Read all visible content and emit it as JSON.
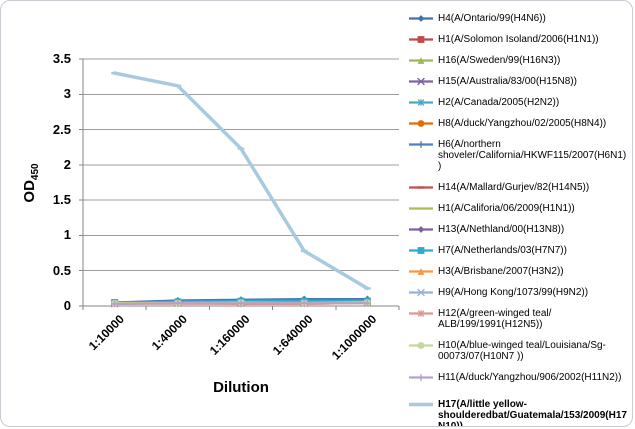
{
  "chart_data": {
    "type": "line",
    "title": "",
    "xlabel": "Dilution",
    "ylabel": "OD450",
    "ylabel_main": "OD",
    "ylabel_sub": "450",
    "categories": [
      "1:10000",
      "1:40000",
      "1:160000",
      "1:640000",
      "1:1000000"
    ],
    "y_ticks": [
      "3.5",
      "3",
      "2.5",
      "2",
      "1.5",
      "1",
      "0.5",
      "0"
    ],
    "ylim": [
      0,
      3.5
    ],
    "grid": true,
    "legend_position": "right",
    "series": [
      {
        "name": "H4(A/Ontario/99(H4N6))",
        "color": "#4472A4",
        "marker": "diamond",
        "values": [
          0.05,
          0.08,
          0.09,
          0.1,
          0.1
        ]
      },
      {
        "name": "H1(A/Solomon Isoland/2006(H1N1))",
        "color": "#BE4B48",
        "marker": "square",
        "values": [
          0.04,
          0.05,
          0.05,
          0.05,
          0.05
        ]
      },
      {
        "name": "H16(A/Sweden/99(H16N3))",
        "color": "#98B954",
        "marker": "triangle",
        "values": [
          0.05,
          0.05,
          0.06,
          0.06,
          0.06
        ]
      },
      {
        "name": "H15(A/Australia/83/00(H15N8))",
        "color": "#7E63A1",
        "marker": "x",
        "values": [
          0.04,
          0.05,
          0.05,
          0.05,
          0.05
        ]
      },
      {
        "name": "H2(A/Canada/2005(H2N2))",
        "color": "#46AAC5",
        "marker": "asterisk",
        "values": [
          0.05,
          0.06,
          0.06,
          0.06,
          0.06
        ]
      },
      {
        "name": "H8(A/duck/Yangzhou/02/2005(H8N4))",
        "color": "#E36C0A",
        "marker": "circle",
        "values": [
          0.05,
          0.06,
          0.07,
          0.07,
          0.07
        ]
      },
      {
        "name": "H6(A/northern shoveler/California/HKWF115/2007(H6N1))",
        "color": "#4F81BD",
        "marker": "plus",
        "values": [
          0.05,
          0.07,
          0.08,
          0.09,
          0.09
        ]
      },
      {
        "name": "H14(A/Mallard/Gurjev/82(H14N5))",
        "color": "#C0504D",
        "marker": "dash",
        "values": [
          0.03,
          0.04,
          0.03,
          0.03,
          0.04
        ]
      },
      {
        "name": "H1(A/Califoria/06/2009(H1N1))",
        "color": "#A8BE51",
        "marker": "none",
        "values": [
          0.04,
          0.04,
          0.04,
          0.04,
          0.05
        ]
      },
      {
        "name": "H13(A/Nethland/00(H13N8))",
        "color": "#7D60A0",
        "marker": "diamond",
        "values": [
          0.05,
          0.06,
          0.06,
          0.06,
          0.06
        ]
      },
      {
        "name": "H7(A/Netherlands/03(H7N7))",
        "color": "#2FAACB",
        "marker": "square",
        "values": [
          0.05,
          0.06,
          0.07,
          0.07,
          0.07
        ]
      },
      {
        "name": "H3(A/Brisbane/2007(H3N2))",
        "color": "#F79646",
        "marker": "triangle",
        "values": [
          0.04,
          0.05,
          0.05,
          0.05,
          0.06
        ]
      },
      {
        "name": "H9(A/Hong Kong/1073/99(H9N2))",
        "color": "#95B3D7",
        "marker": "x",
        "values": [
          0.03,
          0.04,
          0.04,
          0.04,
          0.04
        ]
      },
      {
        "name": "H12(A/green-winged teal/ ALB/199/1991(H12N5))",
        "color": "#D99694",
        "marker": "asterisk",
        "values": [
          0.03,
          0.03,
          0.03,
          0.03,
          0.04
        ]
      },
      {
        "name": "H10(A/blue-winged teal/Louisiana/Sg-00073/07(H10N7 ))",
        "color": "#C3D69B",
        "marker": "circle",
        "values": [
          0.04,
          0.04,
          0.05,
          0.04,
          0.05
        ]
      },
      {
        "name": "H11(A/duck/Yangzhou/906/2002(H11N2))",
        "color": "#B2A2C7",
        "marker": "plus",
        "values": [
          0.03,
          0.04,
          0.04,
          0.04,
          0.04
        ]
      },
      {
        "name": "H17(A/little yellow-shoulderedbat/Guatemala/153/2009(H17N10))",
        "color": "#A8CADF",
        "marker": "dash",
        "width": 3.5,
        "emphasis": true,
        "values": [
          3.3,
          3.12,
          2.23,
          0.78,
          0.25
        ]
      }
    ]
  }
}
